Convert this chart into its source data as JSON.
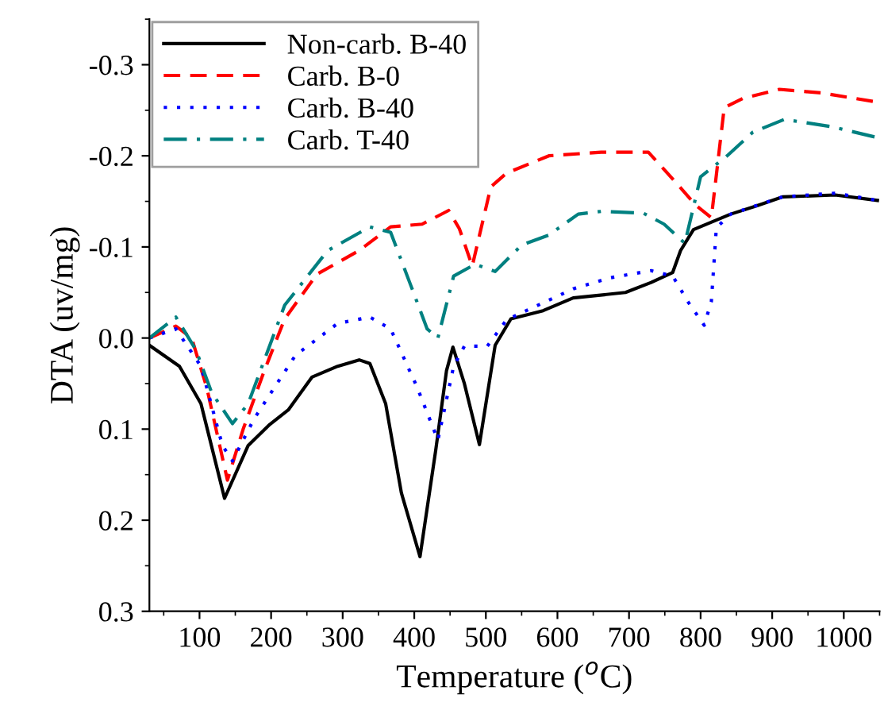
{
  "chart_data": {
    "type": "line",
    "xlabel": "Temperature ($^{o}$C)",
    "ylabel": "DTA (uv/mg)",
    "xlim": [
      30,
      1050
    ],
    "ylim": [
      0.3,
      -0.35
    ],
    "xticks": [
      100,
      200,
      300,
      400,
      500,
      600,
      700,
      800,
      900,
      1000
    ],
    "yticks": [
      {
        "value": -0.3,
        "label": "-0.3"
      },
      {
        "value": -0.2,
        "label": "-0.2"
      },
      {
        "value": -0.1,
        "label": "-0.1"
      },
      {
        "value": 0,
        "label": "0.0"
      },
      {
        "value": 0.1,
        "label": "0.1"
      },
      {
        "value": 0.2,
        "label": "0.2"
      },
      {
        "value": 0.3,
        "label": "0.3"
      }
    ],
    "grid": false,
    "legend": "top left",
    "series": [
      {
        "name": "Non-carb. B-40",
        "color": "#000000",
        "line_style": "solid",
        "x": [
          30,
          72,
          102,
          135,
          168,
          198,
          224,
          257,
          293,
          323,
          338,
          360,
          382,
          408,
          430,
          445,
          454,
          470,
          491,
          513,
          535,
          580,
          622,
          695,
          731,
          761,
          772,
          790,
          842,
          878,
          915,
          988,
          1047
        ],
        "values": [
          0.008,
          0.031,
          0.072,
          0.176,
          0.118,
          0.095,
          0.079,
          0.043,
          0.031,
          0.024,
          0.028,
          0.072,
          0.17,
          0.24,
          0.123,
          0.036,
          0.01,
          0.05,
          0.117,
          0.008,
          -0.021,
          -0.03,
          -0.044,
          -0.05,
          -0.061,
          -0.072,
          -0.096,
          -0.119,
          -0.136,
          -0.145,
          -0.155,
          -0.157,
          -0.151
        ]
      },
      {
        "name": "Carb. B-0",
        "color": "#ff0000",
        "line_style": "dashed",
        "x": [
          30,
          67,
          89,
          110,
          139,
          161,
          190,
          219,
          264,
          323,
          367,
          411,
          448,
          463,
          481,
          507,
          529,
          588,
          661,
          727,
          764,
          793,
          815,
          833,
          859,
          910,
          969,
          1047
        ],
        "values": [
          0.0,
          -0.013,
          0.0,
          0.054,
          0.156,
          0.1,
          0.037,
          -0.021,
          -0.07,
          -0.096,
          -0.122,
          -0.125,
          -0.14,
          -0.12,
          -0.079,
          -0.166,
          -0.181,
          -0.2,
          -0.204,
          -0.204,
          -0.172,
          -0.146,
          -0.132,
          -0.253,
          -0.263,
          -0.273,
          -0.269,
          -0.259
        ]
      },
      {
        "name": "Carb. B-40",
        "color": "#0000ff",
        "line_style": "dotted",
        "x": [
          30,
          67,
          102,
          132,
          146,
          176,
          234,
          293,
          338,
          367,
          404,
          433,
          455,
          470,
          502,
          529,
          622,
          673,
          731,
          761,
          783,
          805,
          815,
          822,
          842,
          915,
          988,
          1047
        ],
        "values": [
          0.0,
          -0.01,
          0.031,
          0.118,
          0.135,
          0.089,
          0.019,
          -0.016,
          -0.023,
          -0.01,
          0.054,
          0.112,
          0.031,
          0.009,
          0.009,
          -0.02,
          -0.054,
          -0.066,
          -0.074,
          -0.068,
          -0.039,
          -0.014,
          -0.04,
          -0.121,
          -0.136,
          -0.155,
          -0.159,
          -0.151
        ]
      },
      {
        "name": "Carb. T-40",
        "color": "#008080",
        "line_style": "dashdot",
        "x": [
          30,
          67,
          95,
          117,
          146,
          168,
          219,
          279,
          338,
          367,
          396,
          418,
          433,
          455,
          485,
          513,
          550,
          588,
          629,
          661,
          720,
          749,
          778,
          800,
          837,
          873,
          917,
          983,
          1047
        ],
        "values": [
          0.0,
          -0.023,
          0.013,
          0.06,
          0.094,
          0.072,
          -0.036,
          -0.096,
          -0.122,
          -0.116,
          -0.056,
          -0.01,
          0.0,
          -0.068,
          -0.081,
          -0.073,
          -0.102,
          -0.113,
          -0.136,
          -0.139,
          -0.137,
          -0.125,
          -0.104,
          -0.177,
          -0.2,
          -0.226,
          -0.24,
          -0.232,
          -0.22
        ]
      }
    ]
  }
}
